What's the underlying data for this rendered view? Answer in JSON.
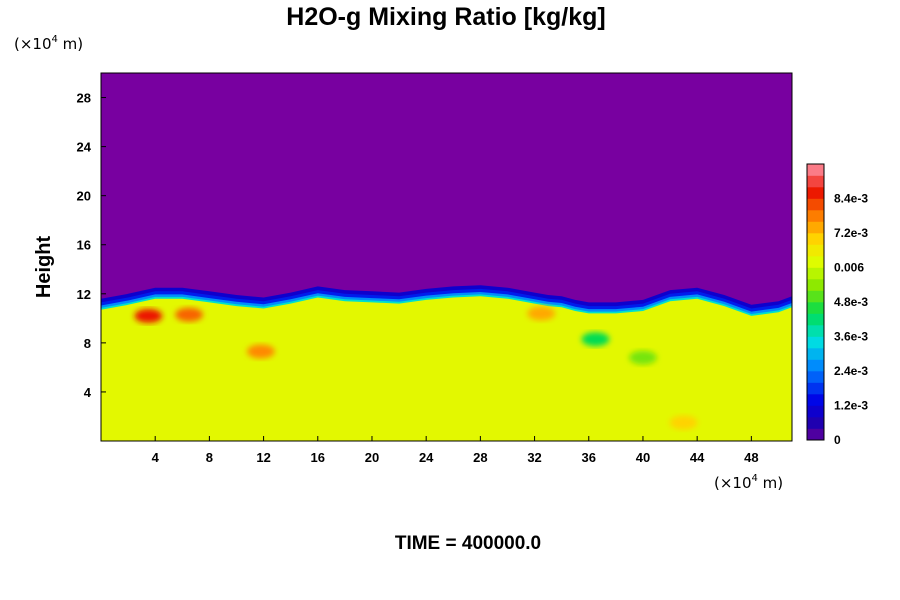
{
  "chart_data": {
    "type": "heatmap",
    "title": "H2O-g Mixing Ratio [kg/kg]",
    "ylabel": "Height",
    "x_unit": {
      "base": "(×10",
      "exp": "4",
      "tail": " m)"
    },
    "y_unit": {
      "base": "(×10",
      "exp": "4",
      "tail": " m)"
    },
    "x_ticks": [
      4,
      8,
      12,
      16,
      20,
      24,
      28,
      32,
      36,
      40,
      44,
      48
    ],
    "y_ticks": [
      4,
      8,
      12,
      16,
      20,
      24,
      28
    ],
    "xlim": [
      0,
      51
    ],
    "ylim": [
      0,
      30
    ],
    "colorbar": {
      "labels": [
        "0",
        "1.2e-3",
        "2.4e-3",
        "3.6e-3",
        "4.8e-3",
        "0.006",
        "7.2e-3",
        "8.4e-3"
      ],
      "label_values": [
        0,
        0.0012,
        0.0024,
        0.0036,
        0.0048,
        0.006,
        0.0072,
        0.0084
      ],
      "vmin": 0,
      "vmax": 0.0096,
      "levels": 24
    },
    "fields": {
      "dry_upper_value": 0.0,
      "moist_lower_value": 0.0063,
      "moist_top_height_profile": {
        "x": [
          0,
          2,
          4,
          6,
          8,
          10,
          12,
          14,
          16,
          18,
          20,
          22,
          24,
          26,
          28,
          30,
          32,
          33,
          34,
          35,
          36,
          38,
          40,
          42,
          44,
          46,
          48,
          50,
          51
        ],
        "y": [
          10.7,
          11.1,
          11.6,
          11.6,
          11.3,
          11.0,
          10.8,
          11.2,
          11.7,
          11.4,
          11.3,
          11.2,
          11.5,
          11.7,
          11.8,
          11.6,
          11.2,
          11.0,
          10.9,
          10.6,
          10.4,
          10.4,
          10.6,
          11.4,
          11.6,
          11.0,
          10.2,
          10.5,
          10.9
        ]
      },
      "moist_anomalies": [
        {
          "x": 3.5,
          "y": 10.2,
          "value": 0.0086
        },
        {
          "x": 6.5,
          "y": 10.3,
          "value": 0.008
        },
        {
          "x": 11.8,
          "y": 7.3,
          "value": 0.0077
        },
        {
          "x": 32.5,
          "y": 10.4,
          "value": 0.0074
        },
        {
          "x": 36.5,
          "y": 8.3,
          "value": 0.0044
        },
        {
          "x": 40.0,
          "y": 6.8,
          "value": 0.0052
        },
        {
          "x": 43.0,
          "y": 1.5,
          "value": 0.007
        }
      ]
    }
  },
  "footer": {
    "time_label": "TIME = 400000.0"
  }
}
